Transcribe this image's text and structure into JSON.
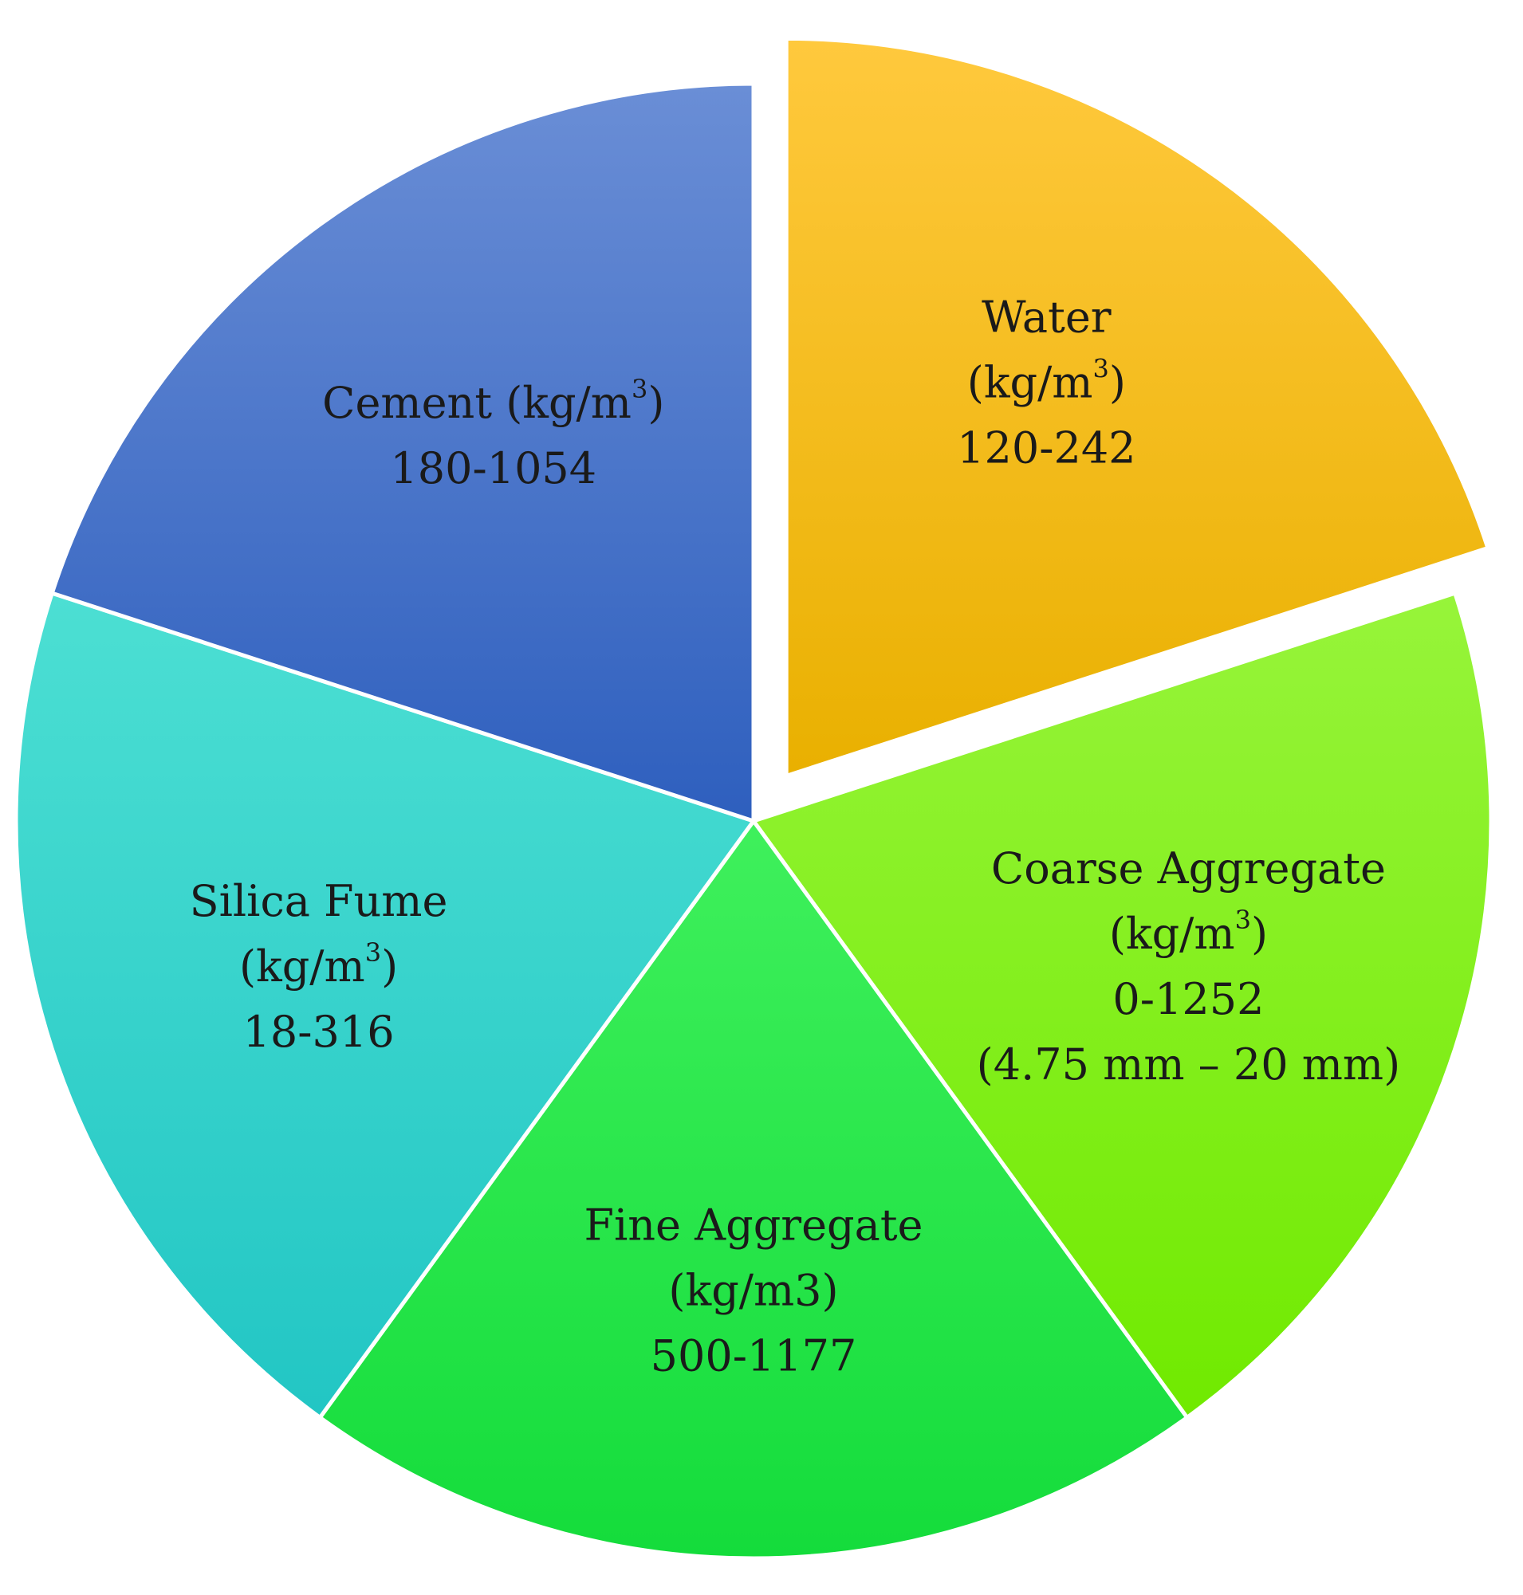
{
  "chart_data": {
    "type": "pie",
    "exploded_slice": "Water",
    "slices": [
      {
        "name": "Water",
        "value": 20,
        "color_top": "#ffc93d",
        "color_bottom": "#e9b000",
        "label_lines": [
          {
            "text": "Water"
          },
          {
            "text": "(kg/m",
            "sup": "3",
            "after": ")"
          },
          {
            "text": "120-242"
          }
        ]
      },
      {
        "name": "Coarse Aggregate",
        "value": 20,
        "color_top": "#97f43a",
        "color_bottom": "#70ea00",
        "label_lines": [
          {
            "text": "Coarse Aggregate"
          },
          {
            "text": "(kg/m",
            "sup": "3",
            "after": ")"
          },
          {
            "text": "0-1252"
          },
          {
            "text": "(4.75 mm – 20 mm)"
          }
        ]
      },
      {
        "name": "Fine Aggregate",
        "value": 20,
        "color_top": "#3ff05c",
        "color_bottom": "#14dc3b",
        "label_lines": [
          {
            "text": "Fine Aggregate"
          },
          {
            "text": "(kg/m3)"
          },
          {
            "text": "500-1177"
          }
        ]
      },
      {
        "name": "Silica Fume",
        "value": 20,
        "color_top": "#4cdfd3",
        "color_bottom": "#22c6c4",
        "label_lines": [
          {
            "text": "Silica Fume"
          },
          {
            "text": "(kg/m",
            "sup": "3",
            "after": ")"
          },
          {
            "text": "18-316"
          }
        ]
      },
      {
        "name": "Cement",
        "value": 20,
        "color_top": "#6a8ed6",
        "color_bottom": "#2e5fbe",
        "label_lines": [
          {
            "text": "Cement (kg/m",
            "sup": "3",
            "after": ")"
          },
          {
            "text": "180-1054"
          }
        ]
      }
    ]
  }
}
